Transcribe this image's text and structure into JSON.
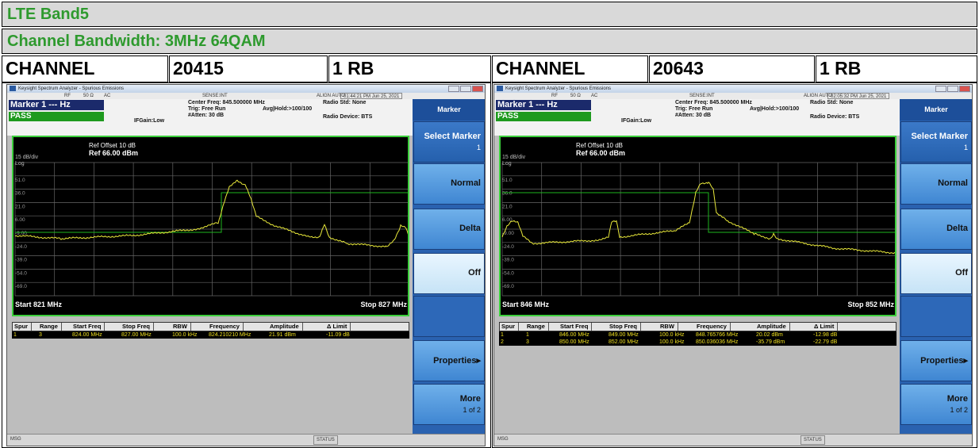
{
  "header": {
    "title": "LTE Band5",
    "subtitle": "Channel Bandwidth: 3MHz 64QAM"
  },
  "channels": [
    {
      "label": "CHANNEL",
      "channel": "20415",
      "rb": "1 RB"
    },
    {
      "label": "CHANNEL",
      "channel": "20643",
      "rb": "1 RB"
    }
  ],
  "screens": [
    {
      "window_title": "Keysight Spectrum Analyzer - Spurious Emissions",
      "status": {
        "rf": "RF",
        "impedance": "50 Ω",
        "coupling": "AC",
        "sense": "SENSE:INT",
        "align": "ALIGN AUTO",
        "time": "01:44:21 PM Jun 25, 2021"
      },
      "marker": "Marker 1 --- Hz",
      "pass": "PASS",
      "center": "Center Freq: 845.500000 MHz",
      "trig": "Trig: Free Run",
      "avg": "Avg|Hold:>100/100",
      "atten": "#Atten: 30 dB",
      "ifgain": "IFGain:Low",
      "radio_std": "Radio Std: None",
      "radio_device": "Radio Device: BTS",
      "ref_offset": "Ref Offset 10 dB",
      "ref": "Ref 66.00 dBm",
      "scale": "15 dB/div",
      "log": "Log",
      "y_labels": [
        "51.0",
        "36.0",
        "21.0",
        "6.00",
        "-9.00",
        "-24.0",
        "-39.0",
        "-54.0",
        "-69.0"
      ],
      "start": "Start 821 MHz",
      "stop": "Stop 827 MHz",
      "table": {
        "headers": [
          "Spur",
          "Range",
          "Start Freq",
          "Stop Freq",
          "RBW",
          "Frequency",
          "Amplitude",
          "Δ Limit"
        ],
        "rows": [
          [
            "1",
            "3",
            "824.00 MHz",
            "827.00 MHz",
            "100.0 kHz",
            "824.210210 MHz",
            "21.91 dBm",
            "-11.09 dB"
          ]
        ]
      },
      "softkey_title": "Marker",
      "softkeys": [
        {
          "label": "Select Marker",
          "sub": "1"
        },
        {
          "label": "Normal"
        },
        {
          "label": "Delta"
        },
        {
          "label": "Off"
        },
        {
          "label": "Properties▸"
        },
        {
          "label": "More",
          "sub": "1 of 2"
        }
      ],
      "msg": "MSG",
      "status_label": "STATUS"
    },
    {
      "window_title": "Keysight Spectrum Analyzer - Spurious Emissions",
      "status": {
        "rf": "RF",
        "impedance": "50 Ω",
        "coupling": "AC",
        "sense": "SENSE:INT",
        "align": "ALIGN AUTO",
        "time": "02:05:32 PM Jun 25, 2021"
      },
      "marker": "Marker 1 --- Hz",
      "pass": "PASS",
      "center": "Center Freq: 845.500000 MHz",
      "trig": "Trig: Free Run",
      "avg": "Avg|Hold:>100/100",
      "atten": "#Atten: 30 dB",
      "ifgain": "IFGain:Low",
      "radio_std": "Radio Std: None",
      "radio_device": "Radio Device: BTS",
      "ref_offset": "Ref Offset 10 dB",
      "ref": "Ref 66.00 dBm",
      "scale": "15 dB/div",
      "log": "Log",
      "y_labels": [
        "51.0",
        "36.0",
        "21.0",
        "6.00",
        "-9.00",
        "-24.0",
        "-39.0",
        "-54.0",
        "-69.0"
      ],
      "start": "Start 846 MHz",
      "stop": "Stop 852 MHz",
      "table": {
        "headers": [
          "Spur",
          "Range",
          "Start Freq",
          "Stop Freq",
          "RBW",
          "Frequency",
          "Amplitude",
          "Δ Limit"
        ],
        "rows": [
          [
            "1",
            "1",
            "846.00 MHz",
            "849.00 MHz",
            "100.0 kHz",
            "848.765766 MHz",
            "20.02 dBm",
            "-12.98 dB"
          ],
          [
            "2",
            "3",
            "850.00 MHz",
            "852.00 MHz",
            "100.0 kHz",
            "850.036036 MHz",
            "-35.79 dBm",
            "-22.79 dB"
          ]
        ]
      },
      "softkey_title": "Marker",
      "softkeys": [
        {
          "label": "Select Marker",
          "sub": "1"
        },
        {
          "label": "Normal"
        },
        {
          "label": "Delta"
        },
        {
          "label": "Off"
        },
        {
          "label": "Properties▸"
        },
        {
          "label": "More",
          "sub": "1 of 2"
        }
      ],
      "msg": "MSG",
      "status_label": "STATUS"
    }
  ]
}
